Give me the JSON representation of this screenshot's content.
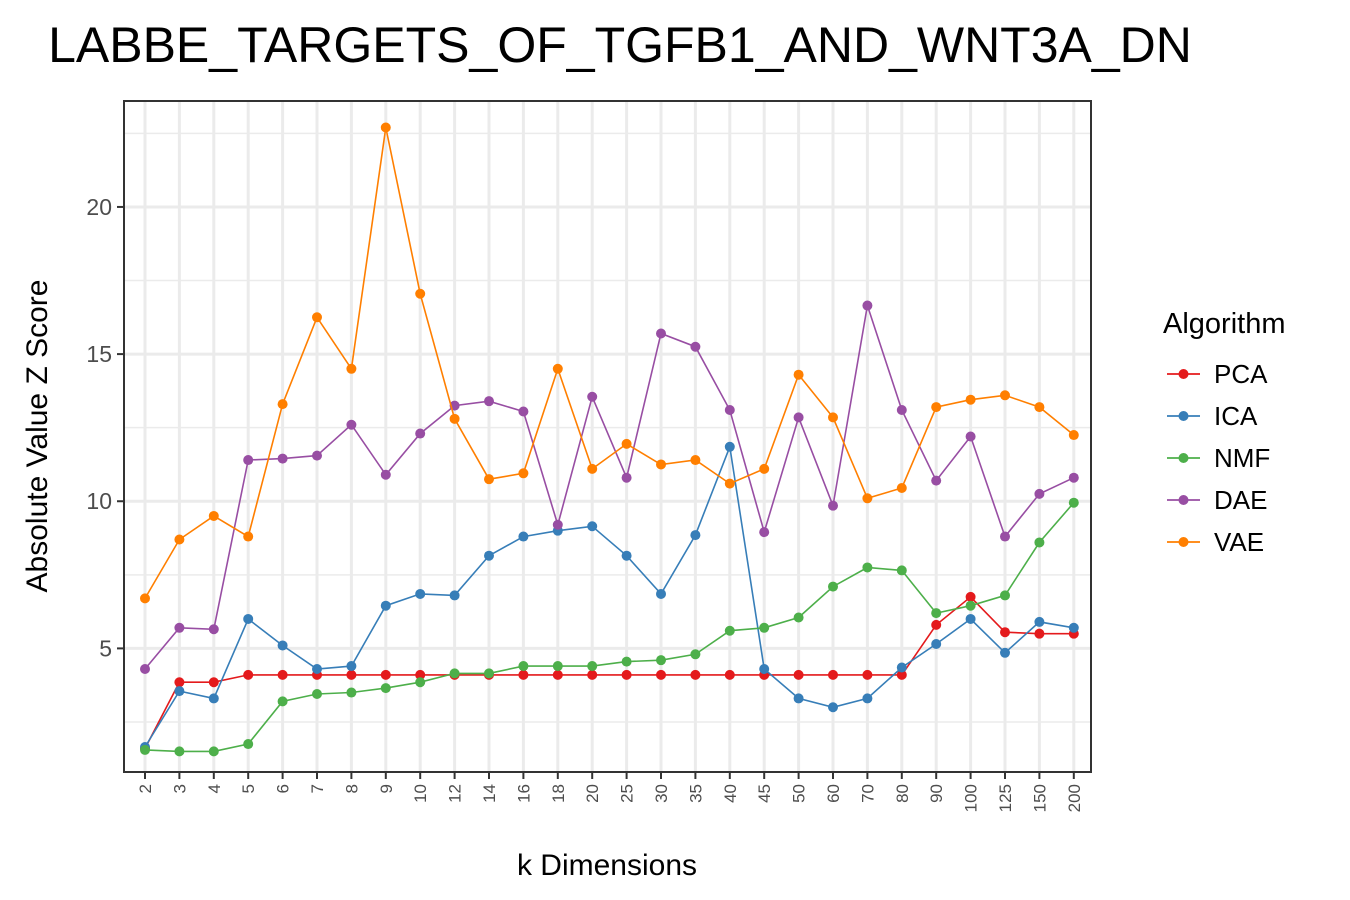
{
  "chart_data": {
    "type": "line",
    "title": "LABBE_TARGETS_OF_TGFB1_AND_WNT3A_DN",
    "xlabel": "k Dimensions",
    "ylabel": "Absolute Value Z Score",
    "categories": [
      "2",
      "3",
      "4",
      "5",
      "6",
      "7",
      "8",
      "9",
      "10",
      "12",
      "14",
      "16",
      "18",
      "20",
      "25",
      "30",
      "35",
      "40",
      "45",
      "50",
      "60",
      "70",
      "80",
      "90",
      "100",
      "125",
      "150",
      "200"
    ],
    "ylim": [
      0.8,
      23.6
    ],
    "yticks": [
      5,
      10,
      15,
      20
    ],
    "grid": true,
    "legend": {
      "title": "Algorithm",
      "position": "right"
    },
    "series": [
      {
        "name": "PCA",
        "color": "#e41a1c",
        "values": [
          1.6,
          3.85,
          3.85,
          4.1,
          4.1,
          4.1,
          4.1,
          4.1,
          4.1,
          4.1,
          4.1,
          4.1,
          4.1,
          4.1,
          4.1,
          4.1,
          4.1,
          4.1,
          4.1,
          4.1,
          4.1,
          4.1,
          4.1,
          5.8,
          6.75,
          5.55,
          5.5,
          5.5
        ]
      },
      {
        "name": "ICA",
        "color": "#377eb8",
        "values": [
          1.65,
          3.55,
          3.3,
          6.0,
          5.1,
          4.3,
          4.4,
          6.45,
          6.85,
          6.8,
          8.15,
          8.8,
          9.0,
          9.15,
          8.15,
          6.85,
          8.85,
          11.85,
          4.3,
          3.3,
          3.0,
          3.3,
          4.35,
          5.15,
          6.0,
          4.85,
          5.9,
          5.7
        ]
      },
      {
        "name": "NMF",
        "color": "#4daf4a",
        "values": [
          1.55,
          1.5,
          1.5,
          1.75,
          3.2,
          3.45,
          3.5,
          3.65,
          3.85,
          4.15,
          4.15,
          4.4,
          4.4,
          4.4,
          4.55,
          4.6,
          4.8,
          5.6,
          5.7,
          6.05,
          7.1,
          7.75,
          7.65,
          6.2,
          6.45,
          6.8,
          8.6,
          9.95
        ]
      },
      {
        "name": "DAE",
        "color": "#984ea3",
        "values": [
          4.3,
          5.7,
          5.65,
          11.4,
          11.45,
          11.55,
          12.6,
          10.9,
          12.3,
          13.25,
          13.4,
          13.05,
          9.2,
          13.55,
          10.8,
          15.7,
          15.25,
          13.1,
          8.95,
          12.85,
          9.85,
          16.65,
          13.1,
          10.7,
          12.2,
          8.8,
          10.25,
          10.8
        ]
      },
      {
        "name": "VAE",
        "color": "#ff7f00",
        "values": [
          6.7,
          8.7,
          9.5,
          8.8,
          13.3,
          16.25,
          14.5,
          22.7,
          17.05,
          12.8,
          10.75,
          10.95,
          14.5,
          11.1,
          11.95,
          11.25,
          11.4,
          10.6,
          11.1,
          14.3,
          12.85,
          10.1,
          10.45,
          13.2,
          13.45,
          13.6,
          13.2,
          12.25
        ]
      }
    ]
  }
}
